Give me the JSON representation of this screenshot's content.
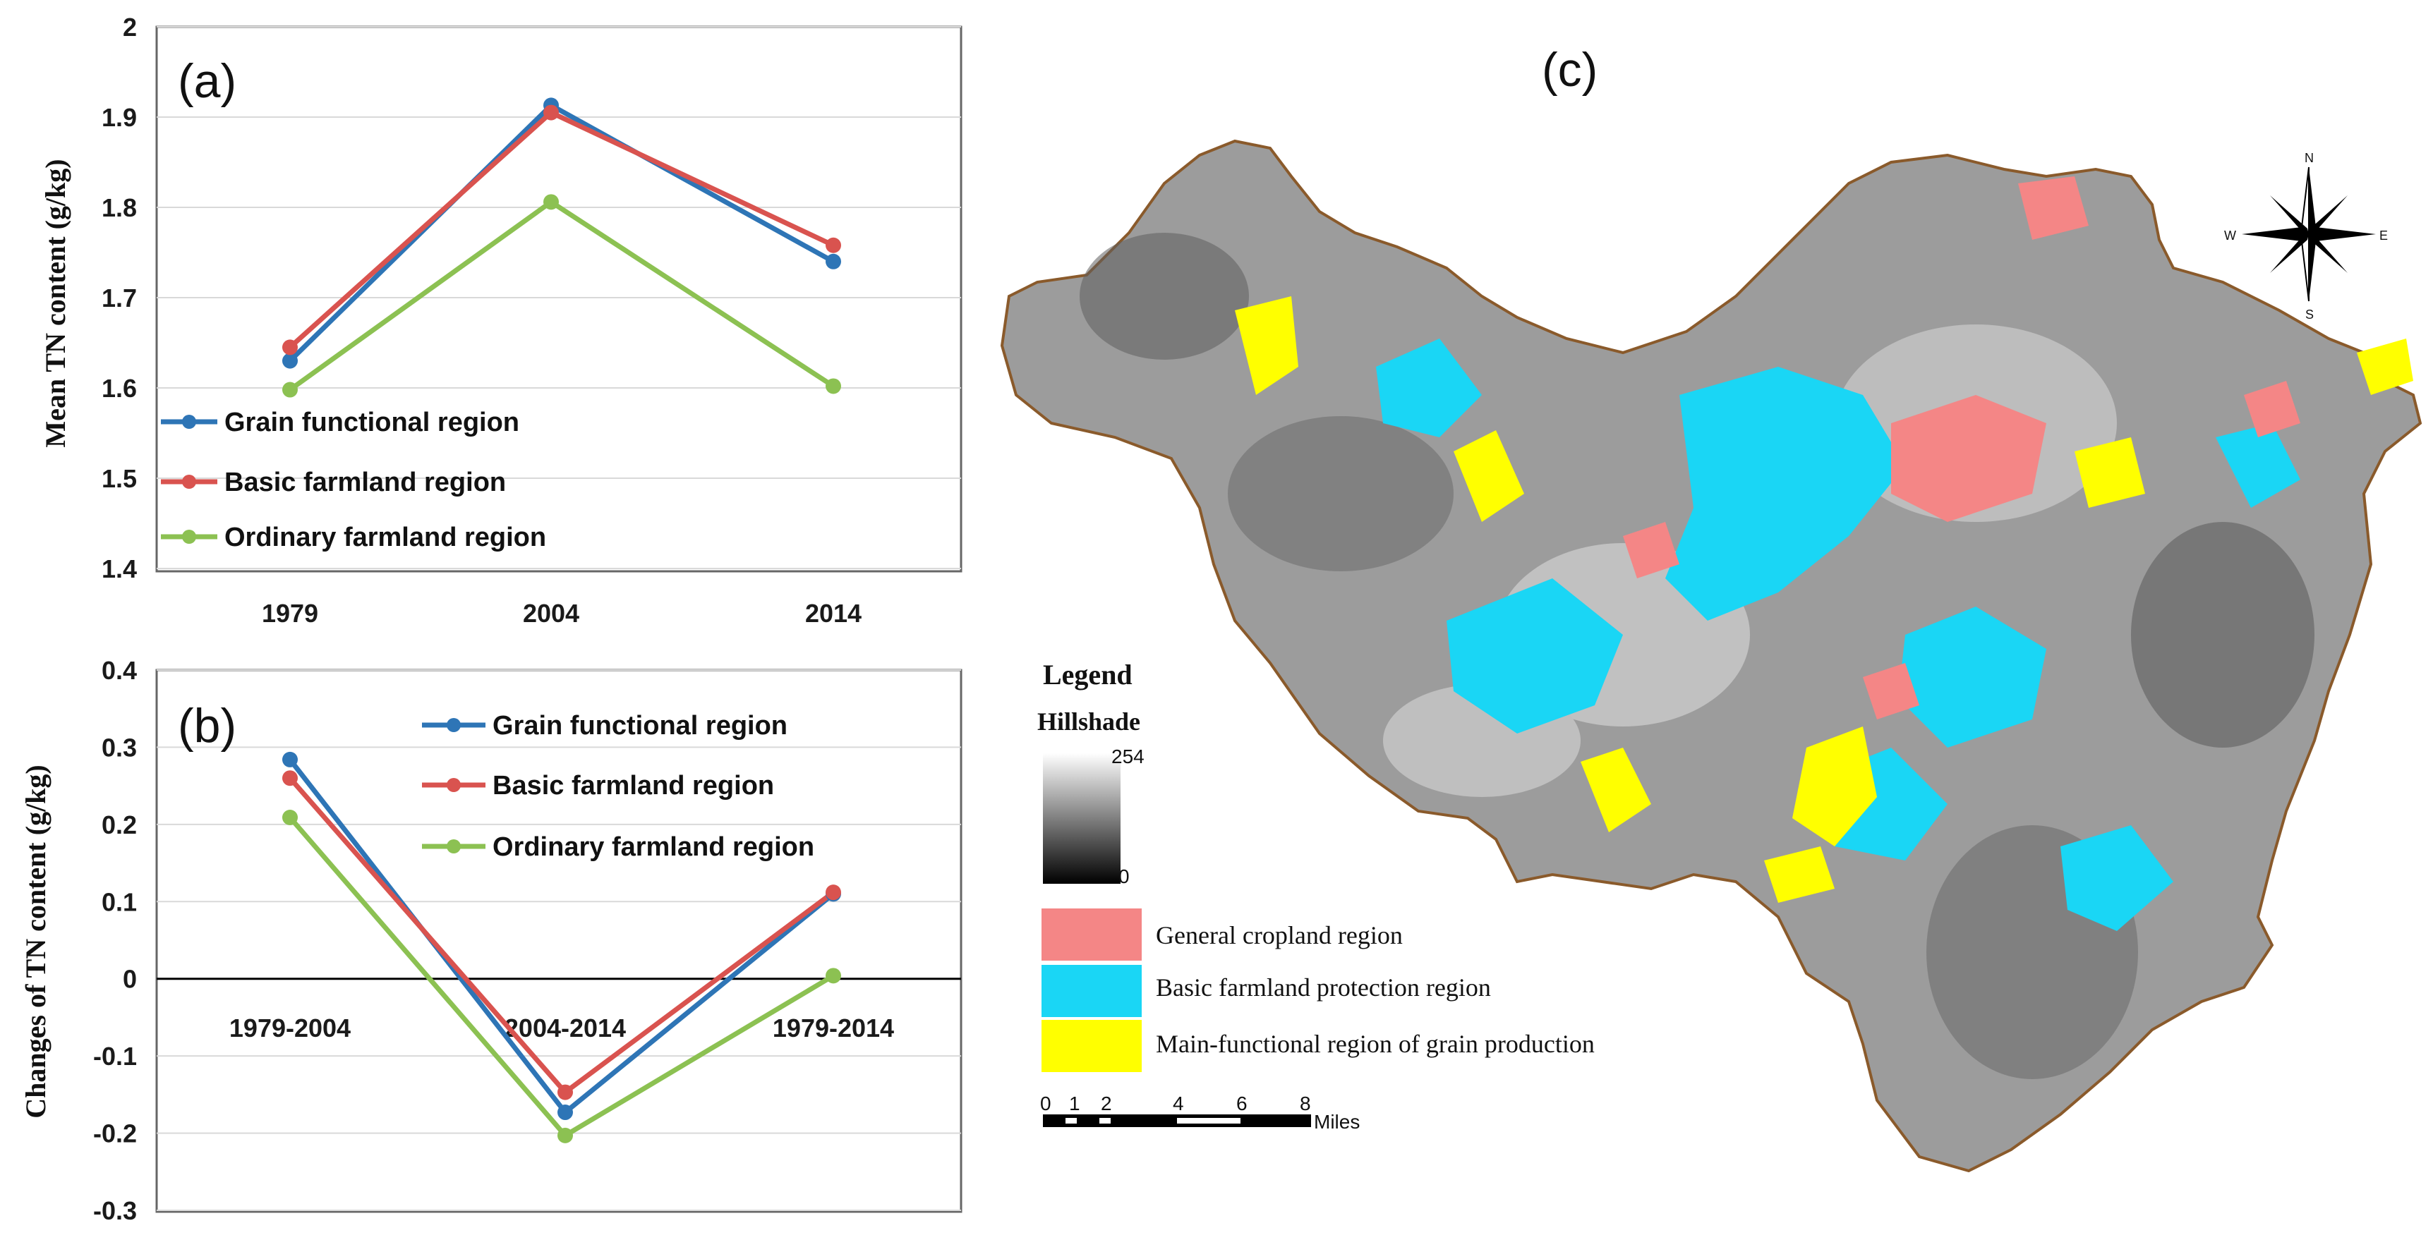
{
  "chart_data": [
    {
      "type": "line",
      "panel_label": "(a)",
      "ylabel": "Mean TN content (g/kg)",
      "categories": [
        "1979",
        "2004",
        "2014"
      ],
      "ylim": [
        1.4,
        2.0
      ],
      "yticks": [
        "1.4",
        "1.5",
        "1.6",
        "1.7",
        "1.8",
        "1.9",
        "2"
      ],
      "grid": true,
      "legend_placement": "bottom-left",
      "series": [
        {
          "name": "Grain functional region",
          "color": "#2e75b6",
          "values": [
            1.63,
            1.913,
            1.74
          ]
        },
        {
          "name": "Basic farmland region",
          "color": "#d9534f",
          "values": [
            1.645,
            1.905,
            1.758
          ]
        },
        {
          "name": "Ordinary farmland region",
          "color": "#8cc152",
          "values": [
            1.598,
            1.806,
            1.602
          ]
        }
      ]
    },
    {
      "type": "line",
      "panel_label": "(b)",
      "ylabel": "Changes of TN content (g/kg)",
      "categories": [
        "1979-2004",
        "2004-2014",
        "1979-2014"
      ],
      "ylim": [
        -0.3,
        0.4
      ],
      "yticks": [
        "-0.3",
        "-0.2",
        "-0.1",
        "0",
        "0.1",
        "0.2",
        "0.3",
        "0.4"
      ],
      "grid": true,
      "legend_placement": "top-right",
      "series": [
        {
          "name": "Grain functional region",
          "color": "#2e75b6",
          "values": [
            0.284,
            -0.173,
            0.11
          ]
        },
        {
          "name": "Basic farmland region",
          "color": "#d9534f",
          "values": [
            0.26,
            -0.147,
            0.112
          ]
        },
        {
          "name": "Ordinary farmland region",
          "color": "#8cc152",
          "values": [
            0.209,
            -0.203,
            0.004
          ]
        }
      ]
    }
  ],
  "map": {
    "panel_label": "(c)",
    "legend_title": "Legend",
    "hillshade_label": "Hillshade",
    "hillshade_max": "254",
    "hillshade_min": "0",
    "classes": [
      {
        "label": "General cropland region",
        "color": "#f48686"
      },
      {
        "label": "Basic farmland protection region",
        "color": "#1ad6f5"
      },
      {
        "label": "Main-functional region of grain production",
        "color": "#ffff00"
      }
    ],
    "scale_ticks": [
      "0",
      "1",
      "2",
      "4",
      "6",
      "8"
    ],
    "scale_unit": "Miles",
    "compass": {
      "n": "N",
      "s": "S",
      "e": "E",
      "w": "W"
    }
  }
}
